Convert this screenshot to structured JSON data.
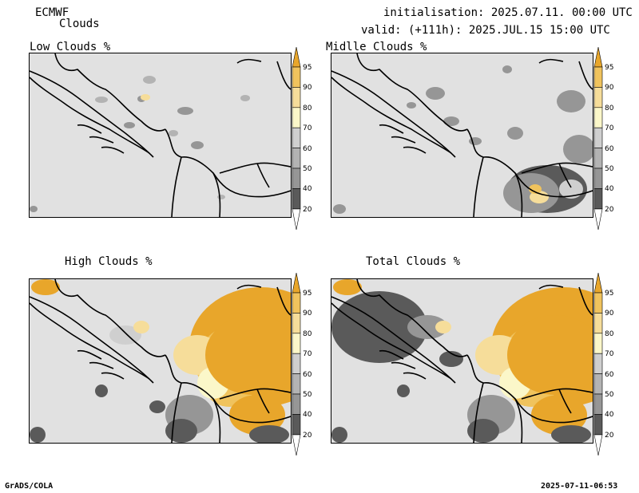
{
  "header": {
    "model": "ECMWF",
    "product": "Clouds",
    "init": "initialisation: 2025.07.11. 00:00 UTC",
    "valid": "valid: (+111h): 2025.JUL.15 15:00 UTC"
  },
  "panels": [
    {
      "title": "Low Clouds %"
    },
    {
      "title": "Midlle Clouds %"
    },
    {
      "title": "High Clouds %"
    },
    {
      "title": "Total Clouds %"
    }
  ],
  "colorbar": {
    "levels": [
      "95",
      "90",
      "80",
      "70",
      "60",
      "50",
      "40",
      "20"
    ],
    "colors": {
      "c95": "#e8a62b",
      "c90": "#f0c35d",
      "c80": "#f6dd9a",
      "c70": "#fbf7c9",
      "c60": "#cfcfcf",
      "c50": "#b3b3b3",
      "c40": "#969696",
      "c20": "#5a5a5a",
      "cLow": "#ffffff"
    }
  },
  "footer": {
    "left": "GrADS/COLA",
    "right": "2025-07-11-06:53"
  }
}
